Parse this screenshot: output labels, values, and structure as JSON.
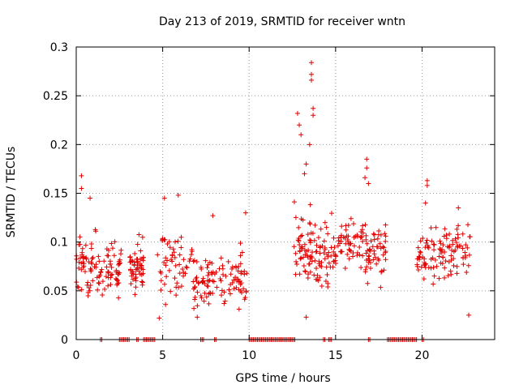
{
  "chart_data": {
    "type": "scatter",
    "title": "Day 213 of 2019, SRMTID for receiver wntn",
    "xlabel": "GPS time / hours",
    "ylabel": "SRMTID / TECUs",
    "xlim": [
      0,
      24.2
    ],
    "ylim": [
      0,
      0.3
    ],
    "grid": true,
    "marker": "+",
    "color": "#e00000",
    "xticks": [
      {
        "value": 0,
        "label": "0"
      },
      {
        "value": 5,
        "label": "5"
      },
      {
        "value": 10,
        "label": "10"
      },
      {
        "value": 15,
        "label": "15"
      },
      {
        "value": 20,
        "label": "20"
      }
    ],
    "yticks": [
      {
        "value": 0,
        "label": "0"
      },
      {
        "value": 0.05,
        "label": "0.05"
      },
      {
        "value": 0.1,
        "label": "0.1"
      },
      {
        "value": 0.15,
        "label": "0.15"
      },
      {
        "value": 0.2,
        "label": "0.2"
      },
      {
        "value": 0.25,
        "label": "0.25"
      },
      {
        "value": 0.3,
        "label": "0.3"
      }
    ],
    "active_segments": [
      {
        "start": 0.0,
        "end": 1.3,
        "base": 0.075,
        "spread": 0.03
      },
      {
        "start": 1.3,
        "end": 2.6,
        "base": 0.07,
        "spread": 0.03
      },
      {
        "start": 3.1,
        "end": 3.9,
        "base": 0.075,
        "spread": 0.03
      },
      {
        "start": 4.7,
        "end": 6.7,
        "base": 0.08,
        "spread": 0.035
      },
      {
        "start": 6.7,
        "end": 8.2,
        "base": 0.06,
        "spread": 0.025
      },
      {
        "start": 8.2,
        "end": 9.9,
        "base": 0.065,
        "spread": 0.03
      },
      {
        "start": 12.6,
        "end": 13.7,
        "base": 0.1,
        "spread": 0.05
      },
      {
        "start": 13.7,
        "end": 15.0,
        "base": 0.085,
        "spread": 0.035
      },
      {
        "start": 15.0,
        "end": 16.6,
        "base": 0.095,
        "spread": 0.03
      },
      {
        "start": 16.6,
        "end": 17.9,
        "base": 0.09,
        "spread": 0.03
      },
      {
        "start": 19.7,
        "end": 21.2,
        "base": 0.085,
        "spread": 0.025
      },
      {
        "start": 21.2,
        "end": 22.8,
        "base": 0.09,
        "spread": 0.03
      }
    ],
    "points_per_segment": 55,
    "peak_points": [
      {
        "x": 0.3,
        "y": 0.168
      },
      {
        "x": 0.3,
        "y": 0.155
      },
      {
        "x": 0.8,
        "y": 0.145
      },
      {
        "x": 5.1,
        "y": 0.145
      },
      {
        "x": 5.9,
        "y": 0.148
      },
      {
        "x": 7.9,
        "y": 0.127
      },
      {
        "x": 9.8,
        "y": 0.13
      },
      {
        "x": 12.8,
        "y": 0.232
      },
      {
        "x": 12.9,
        "y": 0.22
      },
      {
        "x": 13.0,
        "y": 0.21
      },
      {
        "x": 13.3,
        "y": 0.18
      },
      {
        "x": 13.6,
        "y": 0.284
      },
      {
        "x": 13.6,
        "y": 0.272
      },
      {
        "x": 13.6,
        "y": 0.266
      },
      {
        "x": 13.7,
        "y": 0.237
      },
      {
        "x": 13.7,
        "y": 0.23
      },
      {
        "x": 13.5,
        "y": 0.2
      },
      {
        "x": 13.2,
        "y": 0.17
      },
      {
        "x": 16.8,
        "y": 0.185
      },
      {
        "x": 16.8,
        "y": 0.176
      },
      {
        "x": 16.7,
        "y": 0.166
      },
      {
        "x": 16.9,
        "y": 0.16
      },
      {
        "x": 20.3,
        "y": 0.163
      },
      {
        "x": 20.3,
        "y": 0.158
      },
      {
        "x": 20.2,
        "y": 0.14
      },
      {
        "x": 22.1,
        "y": 0.135
      },
      {
        "x": 22.7,
        "y": 0.025
      },
      {
        "x": 13.3,
        "y": 0.023
      },
      {
        "x": 4.8,
        "y": 0.022
      },
      {
        "x": 7.0,
        "y": 0.023
      }
    ],
    "zero_segments": [
      {
        "start": 1.4,
        "end": 1.5
      },
      {
        "start": 2.5,
        "end": 3.1
      },
      {
        "start": 3.5,
        "end": 3.6
      },
      {
        "start": 3.9,
        "end": 4.6
      },
      {
        "start": 7.2,
        "end": 7.4
      },
      {
        "start": 8.0,
        "end": 8.1
      },
      {
        "start": 10.0,
        "end": 12.7
      },
      {
        "start": 14.3,
        "end": 14.4
      },
      {
        "start": 14.6,
        "end": 14.8
      },
      {
        "start": 16.9,
        "end": 17.0
      },
      {
        "start": 18.0,
        "end": 19.7
      },
      {
        "start": 20.0,
        "end": 20.1
      }
    ]
  }
}
